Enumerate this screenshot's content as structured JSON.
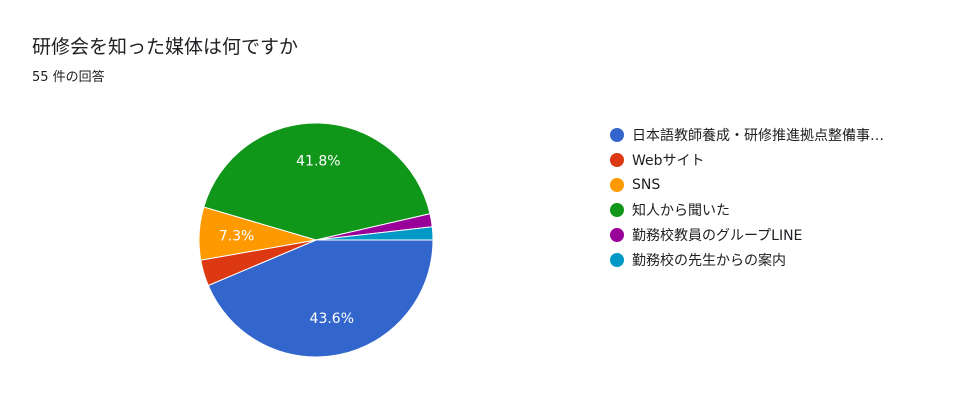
{
  "question": {
    "title": "研修会を知った媒体は何ですか",
    "response_count": "55 件の回答"
  },
  "chart_data": {
    "type": "pie",
    "slices": [
      {
        "label": "日本語教師養成・研修推進拠点整備事…",
        "percent": 43.6,
        "color": "#3366cc",
        "data_label": "43.6%"
      },
      {
        "label": "Webサイト",
        "percent": 3.6,
        "color": "#dc3912",
        "data_label": ""
      },
      {
        "label": "SNS",
        "percent": 7.3,
        "color": "#ff9900",
        "data_label": "7.3%"
      },
      {
        "label": "知人から聞いた",
        "percent": 41.8,
        "color": "#109618",
        "data_label": "41.8%"
      },
      {
        "label": "勤務校教員のグループLINE",
        "percent": 1.8,
        "color": "#990099",
        "data_label": ""
      },
      {
        "label": "勤務校の先生からの案内",
        "percent": 1.8,
        "color": "#0099c6",
        "data_label": ""
      }
    ],
    "legend_position": "right"
  }
}
